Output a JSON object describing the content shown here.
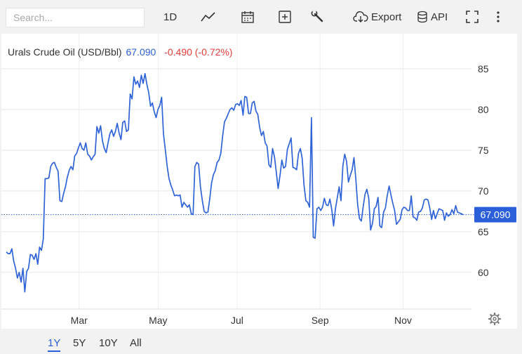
{
  "toolbar": {
    "search_placeholder": "Search...",
    "interval_label": "1D",
    "export_label": "Export",
    "api_label": "API"
  },
  "legend": {
    "name": "Urals Crude Oil (USD/Bbl)",
    "price": "67.090",
    "change": "-0.490 (-0.72%)"
  },
  "price_tag": "67.090",
  "colors": {
    "line": "#2f63d8",
    "change": "#e0403a",
    "price_tag_bg": "#2a5fd9"
  },
  "ranges": [
    "1Y",
    "5Y",
    "10Y",
    "All"
  ],
  "active_range": "1Y",
  "chart_data": {
    "type": "line",
    "title": "Urals Crude Oil (USD/Bbl)",
    "xlabel": "",
    "ylabel": "",
    "x_ticks": [
      "Mar",
      "May",
      "Jul",
      "Sep",
      "Nov"
    ],
    "y_ticks": [
      60,
      65,
      70,
      75,
      80,
      85
    ],
    "ylim": [
      55.5,
      89.3
    ],
    "xlim": [
      0,
      357
    ],
    "grid": true,
    "last_price": 67.09,
    "series": [
      {
        "values": [
          62.5,
          62.3,
          62.3,
          62.9,
          61.4,
          60.5,
          59.3,
          60.0,
          58.8,
          60.5,
          57.6,
          60.1,
          60.5,
          62.2,
          62.1,
          61.6,
          62.3,
          61.0,
          63.1,
          62.7,
          64.1,
          71.5,
          71.5,
          71.6,
          73.0,
          73.4,
          73.5,
          72.9,
          72.4,
          68.8,
          68.7,
          69.7,
          70.5,
          71.7,
          72.5,
          73.0,
          72.6,
          74.3,
          74.6,
          75.3,
          75.9,
          75.2,
          75.0,
          75.9,
          74.5,
          74.3,
          73.8,
          74.2,
          74.5,
          77.9,
          77.1,
          78.0,
          76.1,
          75.2,
          74.7,
          75.9,
          77.0,
          77.5,
          76.7,
          77.3,
          78.3,
          77.1,
          76.3,
          78.4,
          78.6,
          77.3,
          77.5,
          81.9,
          81.3,
          84.0,
          83.1,
          83.5,
          82.7,
          84.2,
          83.2,
          84.4,
          83.1,
          82.1,
          80.4,
          80.8,
          79.7,
          79.0,
          80.0,
          80.5,
          81.5,
          77.0,
          75.0,
          73.0,
          71.5,
          70.7,
          70.1,
          69.4,
          69.5,
          69.4,
          69.5,
          68.0,
          68.6,
          68.3,
          68.0,
          68.3,
          67.2,
          67.1,
          73.0,
          73.5,
          73.3,
          70.5,
          68.8,
          67.5,
          67.3,
          67.4,
          69.0,
          71.0,
          72.0,
          72.5,
          73.5,
          73.8,
          74.6,
          76.8,
          78.5,
          78.9,
          79.5,
          80.0,
          80.2,
          79.9,
          80.6,
          80.7,
          80.5,
          81.1,
          79.3,
          81.6,
          81.5,
          79.5,
          79.5,
          80.8,
          81.0,
          79.8,
          79.4,
          77.8,
          76.8,
          77.3,
          75.9,
          75.5,
          73.2,
          72.9,
          75.2,
          74.2,
          72.3,
          70.3,
          71.9,
          73.8,
          72.8,
          73.0,
          75.1,
          75.8,
          76.5,
          72.9,
          72.8,
          72.6,
          74.6,
          75.2,
          74.0,
          70.7,
          68.8,
          68.6,
          68.0,
          79.0,
          64.3,
          64.2,
          67.8,
          68.0,
          67.6,
          68.0,
          69.1,
          68.3,
          68.2,
          69.0,
          67.7,
          65.7,
          67.8,
          69.2,
          70.5,
          68.8,
          73.1,
          74.5,
          73.6,
          71.1,
          71.9,
          72.6,
          74.1,
          71.5,
          68.3,
          66.6,
          66.3,
          68.1,
          69.6,
          70.2,
          69.1,
          65.2,
          66.0,
          67.8,
          68.1,
          69.2,
          65.7,
          65.5,
          67.4,
          67.9,
          69.4,
          70.6,
          69.5,
          68.5,
          67.6,
          65.9,
          66.2,
          66.5,
          67.7,
          68.0,
          67.9,
          67.6,
          67.6,
          69.4,
          66.8,
          66.7,
          66.4,
          67.4,
          67.5,
          67.9,
          68.9,
          69.0,
          68.9,
          67.9,
          66.5,
          67.6,
          66.6,
          67.2,
          67.8,
          67.7,
          67.6,
          66.4,
          67.3,
          66.9,
          67.1,
          67.7,
          67.2,
          68.2,
          67.4,
          67.3,
          67.2,
          67.09
        ]
      }
    ]
  }
}
